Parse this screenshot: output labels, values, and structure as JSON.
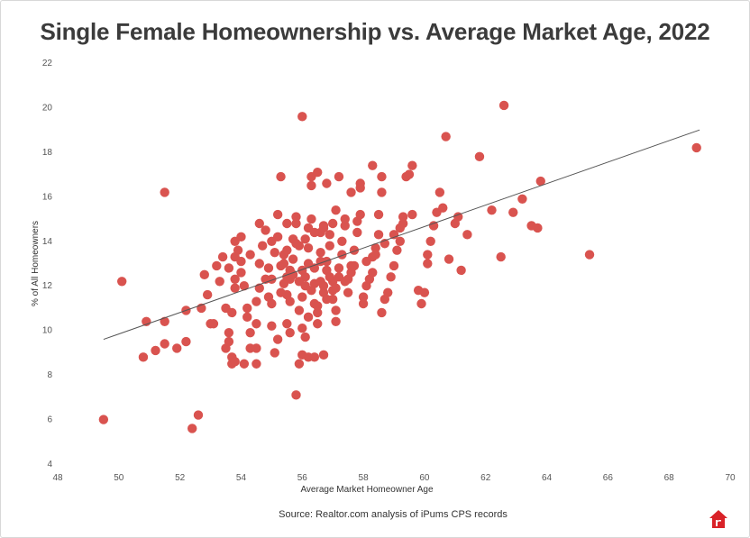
{
  "chart_data": {
    "type": "scatter",
    "title": "Single Female Homeownership vs. Average Market Age, 2022",
    "xlabel": "Average Market Homeowner Age",
    "ylabel": "% of All Homeowners",
    "xlim": [
      48,
      70
    ],
    "ylim": [
      4,
      22
    ],
    "xticks": [
      "48",
      "50",
      "52",
      "54",
      "56",
      "58",
      "60",
      "62",
      "64",
      "66",
      "68",
      "70"
    ],
    "yticks": [
      "4",
      "6",
      "8",
      "10",
      "12",
      "14",
      "16",
      "18",
      "20",
      "22"
    ],
    "grid": false,
    "trendline": {
      "x": [
        49.5,
        69.0
      ],
      "y": [
        9.6,
        19.0
      ]
    },
    "color": "#d9534f",
    "points": [
      [
        49.5,
        6.0
      ],
      [
        50.1,
        12.2
      ],
      [
        50.9,
        10.4
      ],
      [
        50.8,
        8.8
      ],
      [
        51.2,
        9.1
      ],
      [
        51.5,
        10.4
      ],
      [
        51.5,
        9.4
      ],
      [
        51.5,
        16.2
      ],
      [
        51.9,
        9.2
      ],
      [
        52.2,
        9.5
      ],
      [
        52.4,
        5.6
      ],
      [
        52.6,
        6.2
      ],
      [
        52.2,
        10.9
      ],
      [
        52.7,
        11.0
      ],
      [
        52.9,
        11.6
      ],
      [
        52.8,
        12.5
      ],
      [
        53.0,
        10.3
      ],
      [
        53.1,
        10.3
      ],
      [
        53.2,
        12.9
      ],
      [
        53.4,
        13.3
      ],
      [
        53.5,
        11.0
      ],
      [
        53.5,
        9.2
      ],
      [
        53.6,
        9.5
      ],
      [
        53.6,
        9.9
      ],
      [
        53.7,
        8.5
      ],
      [
        53.7,
        8.8
      ],
      [
        53.7,
        10.8
      ],
      [
        53.8,
        11.9
      ],
      [
        53.8,
        12.3
      ],
      [
        53.8,
        13.3
      ],
      [
        53.8,
        14.0
      ],
      [
        53.9,
        13.6
      ],
      [
        54.0,
        14.2
      ],
      [
        54.0,
        12.6
      ],
      [
        54.1,
        12.0
      ],
      [
        54.2,
        11.0
      ],
      [
        54.2,
        10.6
      ],
      [
        54.3,
        9.9
      ],
      [
        54.3,
        9.2
      ],
      [
        54.5,
        8.5
      ],
      [
        54.5,
        9.2
      ],
      [
        54.5,
        10.3
      ],
      [
        54.5,
        11.3
      ],
      [
        54.6,
        11.9
      ],
      [
        54.6,
        13.0
      ],
      [
        54.7,
        13.8
      ],
      [
        54.8,
        12.3
      ],
      [
        54.9,
        11.5
      ],
      [
        55.0,
        10.2
      ],
      [
        55.0,
        11.2
      ],
      [
        55.0,
        12.3
      ],
      [
        55.1,
        13.5
      ],
      [
        55.2,
        14.2
      ],
      [
        55.2,
        15.2
      ],
      [
        55.2,
        9.6
      ],
      [
        55.3,
        12.9
      ],
      [
        55.4,
        13.0
      ],
      [
        55.4,
        13.4
      ],
      [
        55.5,
        14.8
      ],
      [
        55.5,
        12.4
      ],
      [
        55.5,
        11.6
      ],
      [
        55.5,
        10.3
      ],
      [
        55.6,
        9.9
      ],
      [
        55.6,
        12.7
      ],
      [
        55.7,
        13.2
      ],
      [
        55.7,
        14.1
      ],
      [
        55.8,
        14.8
      ],
      [
        55.8,
        15.1
      ],
      [
        55.8,
        7.1
      ],
      [
        55.9,
        8.5
      ],
      [
        55.9,
        13.8
      ],
      [
        56.0,
        11.5
      ],
      [
        56.0,
        10.1
      ],
      [
        56.0,
        8.9
      ],
      [
        56.1,
        9.7
      ],
      [
        56.1,
        12.4
      ],
      [
        56.2,
        13.7
      ],
      [
        56.2,
        14.6
      ],
      [
        56.3,
        15.0
      ],
      [
        56.3,
        16.9
      ],
      [
        56.4,
        12.8
      ],
      [
        56.4,
        12.1
      ],
      [
        56.4,
        11.2
      ],
      [
        56.5,
        10.8
      ],
      [
        56.5,
        10.3
      ],
      [
        56.6,
        13.1
      ],
      [
        56.6,
        13.5
      ],
      [
        56.6,
        14.4
      ],
      [
        56.7,
        14.7
      ],
      [
        56.7,
        11.7
      ],
      [
        56.7,
        12.0
      ],
      [
        56.8,
        12.7
      ],
      [
        56.8,
        13.1
      ],
      [
        56.9,
        13.8
      ],
      [
        56.9,
        14.3
      ],
      [
        57.0,
        12.2
      ],
      [
        57.0,
        11.8
      ],
      [
        57.0,
        11.4
      ],
      [
        57.1,
        10.9
      ],
      [
        57.1,
        10.4
      ],
      [
        57.2,
        12.4
      ],
      [
        57.2,
        12.8
      ],
      [
        57.3,
        13.4
      ],
      [
        57.3,
        14.0
      ],
      [
        57.4,
        14.7
      ],
      [
        57.4,
        15.0
      ],
      [
        57.5,
        11.7
      ],
      [
        57.5,
        12.3
      ],
      [
        57.6,
        12.6
      ],
      [
        57.6,
        12.9
      ],
      [
        57.7,
        13.6
      ],
      [
        57.8,
        14.4
      ],
      [
        57.8,
        14.9
      ],
      [
        57.9,
        15.2
      ],
      [
        57.9,
        16.4
      ],
      [
        58.0,
        11.2
      ],
      [
        58.0,
        11.5
      ],
      [
        58.1,
        12.0
      ],
      [
        58.2,
        12.3
      ],
      [
        58.3,
        12.6
      ],
      [
        58.3,
        13.3
      ],
      [
        58.4,
        13.7
      ],
      [
        58.5,
        14.3
      ],
      [
        58.5,
        15.2
      ],
      [
        58.6,
        16.2
      ],
      [
        58.6,
        16.9
      ],
      [
        58.6,
        10.8
      ],
      [
        58.7,
        11.4
      ],
      [
        58.8,
        11.7
      ],
      [
        58.9,
        12.4
      ],
      [
        59.0,
        12.9
      ],
      [
        59.1,
        13.6
      ],
      [
        59.2,
        14.0
      ],
      [
        59.2,
        14.6
      ],
      [
        59.3,
        15.1
      ],
      [
        59.4,
        16.9
      ],
      [
        59.5,
        17.0
      ],
      [
        59.6,
        17.4
      ],
      [
        58.3,
        17.4
      ],
      [
        57.9,
        16.6
      ],
      [
        57.6,
        16.2
      ],
      [
        57.2,
        16.9
      ],
      [
        56.8,
        16.6
      ],
      [
        56.5,
        17.1
      ],
      [
        56.3,
        16.5
      ],
      [
        55.3,
        16.9
      ],
      [
        56.0,
        19.6
      ],
      [
        59.8,
        11.8
      ],
      [
        59.9,
        11.2
      ],
      [
        60.0,
        11.7
      ],
      [
        60.1,
        13.0
      ],
      [
        60.1,
        13.4
      ],
      [
        60.2,
        14.0
      ],
      [
        60.3,
        14.7
      ],
      [
        60.4,
        15.3
      ],
      [
        60.5,
        16.2
      ],
      [
        60.6,
        15.5
      ],
      [
        60.7,
        18.7
      ],
      [
        60.8,
        13.2
      ],
      [
        61.0,
        14.8
      ],
      [
        61.1,
        15.1
      ],
      [
        61.2,
        12.7
      ],
      [
        61.4,
        14.3
      ],
      [
        61.8,
        17.8
      ],
      [
        62.2,
        15.4
      ],
      [
        62.5,
        13.3
      ],
      [
        62.6,
        20.1
      ],
      [
        62.9,
        15.3
      ],
      [
        63.2,
        15.9
      ],
      [
        63.5,
        14.7
      ],
      [
        63.7,
        14.6
      ],
      [
        63.8,
        16.7
      ],
      [
        65.4,
        13.4
      ],
      [
        68.9,
        18.2
      ],
      [
        56.2,
        8.8
      ],
      [
        56.4,
        8.8
      ],
      [
        56.7,
        8.9
      ],
      [
        55.1,
        9.0
      ],
      [
        54.1,
        8.5
      ],
      [
        53.8,
        8.6
      ],
      [
        55.4,
        12.1
      ],
      [
        55.6,
        12.3
      ],
      [
        55.9,
        12.2
      ],
      [
        56.1,
        12.0
      ],
      [
        56.3,
        11.8
      ],
      [
        56.6,
        12.2
      ],
      [
        56.9,
        12.4
      ],
      [
        55.7,
        12.5
      ],
      [
        56.0,
        12.7
      ],
      [
        56.2,
        13.0
      ],
      [
        55.5,
        13.6
      ],
      [
        55.8,
        13.9
      ],
      [
        56.1,
        14.1
      ],
      [
        56.4,
        14.4
      ],
      [
        56.7,
        14.6
      ],
      [
        57.0,
        14.8
      ],
      [
        55.0,
        14.0
      ],
      [
        54.8,
        14.5
      ],
      [
        54.6,
        14.8
      ],
      [
        54.3,
        13.4
      ],
      [
        54.0,
        13.1
      ],
      [
        53.6,
        12.8
      ],
      [
        53.3,
        12.2
      ],
      [
        54.9,
        12.8
      ],
      [
        55.3,
        11.7
      ],
      [
        55.6,
        11.3
      ],
      [
        55.9,
        10.9
      ],
      [
        56.2,
        10.6
      ],
      [
        56.5,
        11.1
      ],
      [
        56.8,
        11.4
      ],
      [
        57.1,
        11.9
      ],
      [
        57.4,
        12.2
      ],
      [
        57.7,
        12.9
      ],
      [
        58.1,
        13.1
      ],
      [
        58.4,
        13.4
      ],
      [
        58.7,
        13.9
      ],
      [
        59.0,
        14.3
      ],
      [
        59.3,
        14.8
      ],
      [
        59.6,
        15.2
      ],
      [
        57.1,
        15.4
      ]
    ],
    "source": "Source: Realtor.com analysis of iPums CPS records"
  },
  "brand": {
    "logo_icon": "realtor-house-icon",
    "logo_color": "#d92228"
  }
}
